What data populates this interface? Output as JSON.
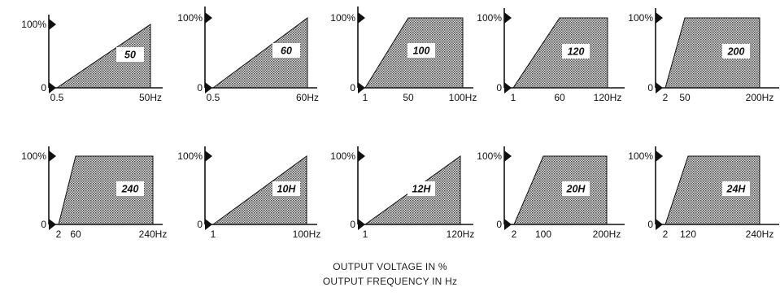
{
  "captions": {
    "line1": "OUTPUT VOLTAGE IN %",
    "line2": "OUTPUT FREQUENCY IN Hz"
  },
  "colors": {
    "ink": "#111111",
    "fill": "#8a8a8a",
    "background": "#ffffff"
  },
  "chart_data": [
    {
      "type": "area",
      "title": "",
      "y_labels": [
        "100%",
        "0"
      ],
      "x_ticks": [
        "0.5",
        "50Hz"
      ],
      "curve_label": "50",
      "x": [
        "0.5",
        "50Hz"
      ],
      "y": [
        0,
        100
      ]
    },
    {
      "type": "area",
      "title": "",
      "y_labels": [
        "100%",
        "0"
      ],
      "x_ticks": [
        "0.5",
        "60Hz"
      ],
      "curve_label": "60",
      "x": [
        "0.5",
        "60Hz"
      ],
      "y": [
        0,
        100
      ]
    },
    {
      "type": "area",
      "title": "",
      "y_labels": [
        "100%",
        "0"
      ],
      "x_ticks": [
        "1",
        "50",
        "100Hz"
      ],
      "curve_label": "100",
      "x": [
        "1",
        "50",
        "100Hz"
      ],
      "y": [
        0,
        100,
        100
      ]
    },
    {
      "type": "area",
      "title": "",
      "y_labels": [
        "100%",
        "0"
      ],
      "x_ticks": [
        "1",
        "60",
        "120Hz"
      ],
      "curve_label": "120",
      "x": [
        "1",
        "60",
        "120Hz"
      ],
      "y": [
        0,
        100,
        100
      ]
    },
    {
      "type": "area",
      "title": "",
      "y_labels": [
        "100%",
        "0"
      ],
      "x_ticks": [
        "2",
        "50",
        "200Hz"
      ],
      "curve_label": "200",
      "x": [
        "2",
        "50",
        "200Hz"
      ],
      "y": [
        0,
        100,
        100
      ]
    },
    {
      "type": "area",
      "title": "",
      "y_labels": [
        "100%",
        "0"
      ],
      "x_ticks": [
        "2",
        "60",
        "240Hz"
      ],
      "curve_label": "240",
      "x": [
        "2",
        "60",
        "240Hz"
      ],
      "y": [
        0,
        100,
        100
      ]
    },
    {
      "type": "area",
      "title": "",
      "y_labels": [
        "100%",
        "0"
      ],
      "x_ticks": [
        "1",
        "100Hz"
      ],
      "curve_label": "10H",
      "x": [
        "1",
        "100Hz"
      ],
      "y": [
        0,
        100
      ]
    },
    {
      "type": "area",
      "title": "",
      "y_labels": [
        "100%",
        "0"
      ],
      "x_ticks": [
        "1",
        "120Hz"
      ],
      "curve_label": "12H",
      "x": [
        "1",
        "120Hz"
      ],
      "y": [
        0,
        100
      ]
    },
    {
      "type": "area",
      "title": "",
      "y_labels": [
        "100%",
        "0"
      ],
      "x_ticks": [
        "2",
        "100",
        "200Hz"
      ],
      "curve_label": "20H",
      "x": [
        "2",
        "100",
        "200Hz"
      ],
      "y": [
        0,
        100,
        100
      ]
    },
    {
      "type": "area",
      "title": "",
      "y_labels": [
        "100%",
        "0"
      ],
      "x_ticks": [
        "2",
        "120",
        "240Hz"
      ],
      "curve_label": "24H",
      "x": [
        "2",
        "120",
        "240Hz"
      ],
      "y": [
        0,
        100,
        100
      ]
    }
  ]
}
